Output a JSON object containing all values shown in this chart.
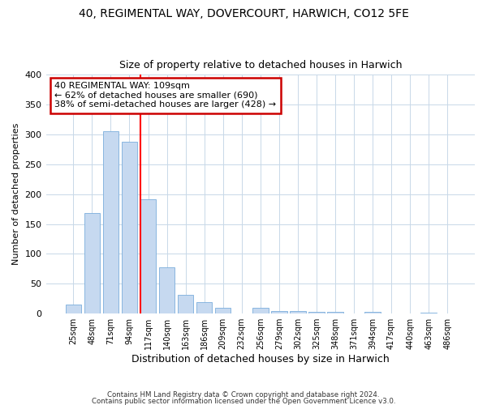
{
  "title1": "40, REGIMENTAL WAY, DOVERCOURT, HARWICH, CO12 5FE",
  "title2": "Size of property relative to detached houses in Harwich",
  "xlabel": "Distribution of detached houses by size in Harwich",
  "ylabel": "Number of detached properties",
  "footer1": "Contains HM Land Registry data © Crown copyright and database right 2024.",
  "footer2": "Contains public sector information licensed under the Open Government Licence v3.0.",
  "property_label": "40 REGIMENTAL WAY: 109sqm",
  "annotation_line1": "← 62% of detached houses are smaller (690)",
  "annotation_line2": "38% of semi-detached houses are larger (428) →",
  "categories": [
    "25sqm",
    "48sqm",
    "71sqm",
    "94sqm",
    "117sqm",
    "140sqm",
    "163sqm",
    "186sqm",
    "209sqm",
    "232sqm",
    "256sqm",
    "279sqm",
    "302sqm",
    "325sqm",
    "348sqm",
    "371sqm",
    "394sqm",
    "417sqm",
    "440sqm",
    "463sqm",
    "486sqm"
  ],
  "values": [
    15,
    168,
    305,
    288,
    191,
    78,
    31,
    19,
    10,
    0,
    10,
    5,
    5,
    3,
    3,
    0,
    3,
    0,
    0,
    2,
    0
  ],
  "bar_color": "#c6d9f0",
  "bar_edge_color": "#7aaedc",
  "redline_index": 4.0,
  "annotation_box_color": "#ffffff",
  "annotation_box_edge": "#cc0000",
  "grid_color": "#c8d8e8",
  "background_color": "#ffffff",
  "plot_bg_color": "#ffffff",
  "ylim": [
    0,
    400
  ],
  "yticks": [
    0,
    50,
    100,
    150,
    200,
    250,
    300,
    350,
    400
  ]
}
